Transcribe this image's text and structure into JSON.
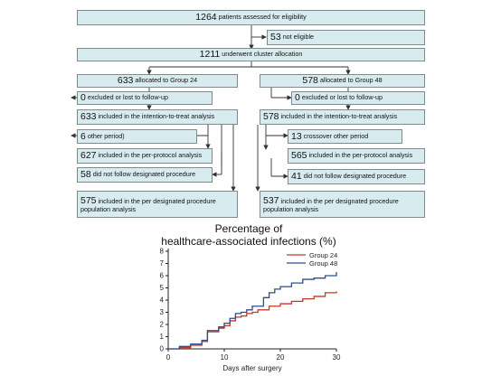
{
  "flow": {
    "assessed": {
      "num": "1264",
      "text": "patients assessed for eligibility"
    },
    "not_eligible": {
      "num": "53",
      "text": "not eligible"
    },
    "allocation": {
      "num": "1211",
      "text": "underwent cluster allocation"
    },
    "g24": {
      "allocated": {
        "num": "633",
        "text": "allocated to Group 24"
      },
      "excluded": {
        "num": "0",
        "text": "excluded or lost to follow-up"
      },
      "itt": {
        "num": "633",
        "text": "included in the intention-to-treat analysis"
      },
      "crossover": {
        "num": "6",
        "text": "other period)"
      },
      "per_protocol": {
        "num": "627",
        "text": "included in the per-protocol analysis"
      },
      "not_followed": {
        "num": "58",
        "text": "did not follow designated procedure"
      },
      "designated": {
        "num": "575",
        "text": "included in the per designated procedure population analysis"
      }
    },
    "g48": {
      "allocated": {
        "num": "578",
        "text": "allocated to Group 48"
      },
      "excluded": {
        "num": "0",
        "text": "excluded or lost to follow-up"
      },
      "itt": {
        "num": "578",
        "text": "included in the intention-to-treat analysis"
      },
      "crossover": {
        "num": "13",
        "text": "crossover other period"
      },
      "per_protocol": {
        "num": "565",
        "text": "included in the per-protocol analysis"
      },
      "not_followed": {
        "num": "41",
        "text": "did not follow designated procedure"
      },
      "designated": {
        "num": "537",
        "text": "included in the per designated procedure population analysis"
      }
    }
  },
  "chart_data": {
    "type": "line",
    "title": "Percentage of healthcare-associated infections (%)",
    "title_line1": "Percentage of",
    "title_line2": "healthcare-associated infections (%)",
    "xlabel": "Days after surgery",
    "ylabel": "",
    "xlim": [
      0,
      30
    ],
    "ylim": [
      0,
      8
    ],
    "xticks": [
      0,
      10,
      20,
      30
    ],
    "yticks": [
      0,
      1,
      2,
      3,
      4,
      5,
      6,
      7,
      8
    ],
    "grid": false,
    "legend_position": "top-right",
    "series": [
      {
        "name": "Group 24",
        "color": "#c0392b",
        "x": [
          0,
          2,
          4,
          6,
          7,
          9,
          10,
          11,
          12,
          13,
          14,
          15,
          16,
          18,
          20,
          22,
          24,
          26,
          28,
          30
        ],
        "y": [
          0,
          0.1,
          0.3,
          0.6,
          1.4,
          1.7,
          1.9,
          2.3,
          2.6,
          2.7,
          2.9,
          3.0,
          3.2,
          3.5,
          3.7,
          3.9,
          4.1,
          4.3,
          4.6,
          4.7
        ]
      },
      {
        "name": "Group 48",
        "color": "#2c4f8c",
        "x": [
          0,
          2,
          4,
          6,
          7,
          9,
          10,
          11,
          12,
          13,
          14,
          15,
          17,
          18,
          19,
          20,
          22,
          24,
          26,
          28,
          29.7,
          30
        ],
        "y": [
          0,
          0.2,
          0.4,
          0.7,
          1.5,
          1.8,
          2.1,
          2.5,
          2.9,
          3.0,
          3.2,
          3.5,
          4.2,
          4.6,
          4.9,
          5.1,
          5.4,
          5.7,
          5.8,
          6.0,
          6.0,
          6.3
        ]
      }
    ]
  }
}
